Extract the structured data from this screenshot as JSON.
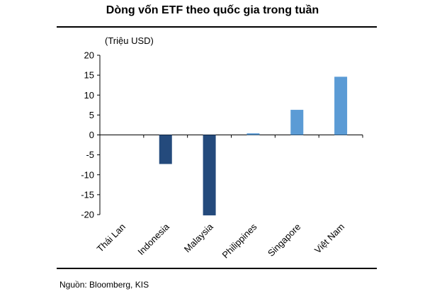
{
  "title": "Dòng vốn ETF theo quốc gia trong tuần",
  "unit_label": "(Triệu USD)",
  "source": "Nguồn: Bloomberg, KIS",
  "colors": {
    "negative": "#244a7c",
    "positive": "#5b9bd5"
  },
  "chart_data": {
    "type": "bar",
    "categories": [
      "Thái Lan",
      "Indonesia",
      "Malaysia",
      "Philippines",
      "Singapore",
      "Việt Nam"
    ],
    "values": [
      0,
      -7.3,
      -20.2,
      0.4,
      6.3,
      14.6
    ],
    "ylim": [
      -20,
      20
    ],
    "yticks": [
      20,
      15,
      10,
      5,
      0,
      -5,
      -10,
      -15,
      -20
    ],
    "ylabel": "(Triệu USD)",
    "xlabel": "",
    "grid": false
  }
}
